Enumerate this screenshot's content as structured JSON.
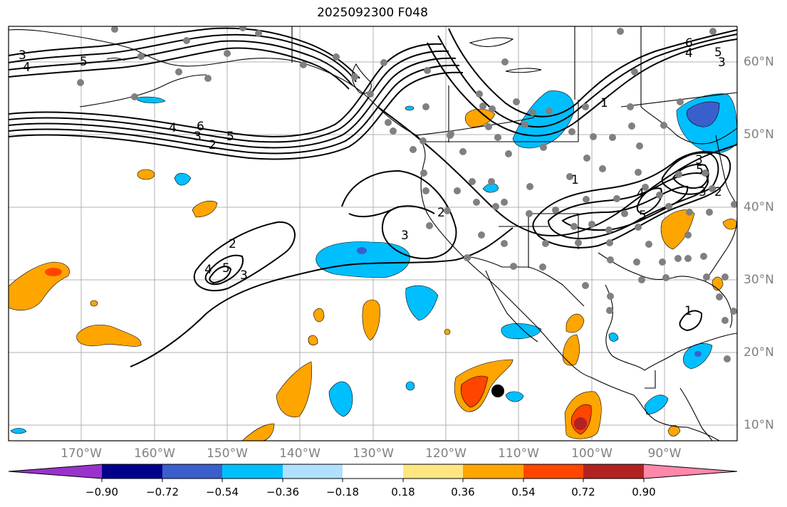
{
  "title": "2025092300 F048",
  "lat_labels": [
    "60°N",
    "50°N",
    "40°N",
    "30°N",
    "20°N",
    "10°N"
  ],
  "lon_labels": [
    "170°W",
    "160°W",
    "150°W",
    "140°W",
    "130°W",
    "120°W",
    "110°W",
    "100°W",
    "90°W"
  ],
  "colorbar": {
    "tick_labels": [
      "−0.90",
      "−0.72",
      "−0.54",
      "−0.36",
      "−0.18",
      "0.18",
      "0.36",
      "0.54",
      "0.72",
      "0.90"
    ],
    "colors": [
      "#9932cc",
      "#00008b",
      "#3a5fcd",
      "#00bfff",
      "#b0e0ff",
      "#ffffff",
      "#ffe680",
      "#ffa500",
      "#ff4500",
      "#b22222",
      "#ff88aa"
    ]
  },
  "contour_labels": [
    "3",
    "4",
    "5",
    "6",
    "4",
    "3",
    "2",
    "5",
    "6",
    "4",
    "5",
    "3",
    "1",
    "1",
    "2",
    "3",
    "2",
    "3",
    "4",
    "5",
    "1",
    "4",
    "5",
    "3",
    "3",
    "2",
    "5",
    "1"
  ],
  "colors": {
    "land_outline": "#000000",
    "grid": "#b0b0b0",
    "station": "#808080",
    "contour": "#000000"
  }
}
